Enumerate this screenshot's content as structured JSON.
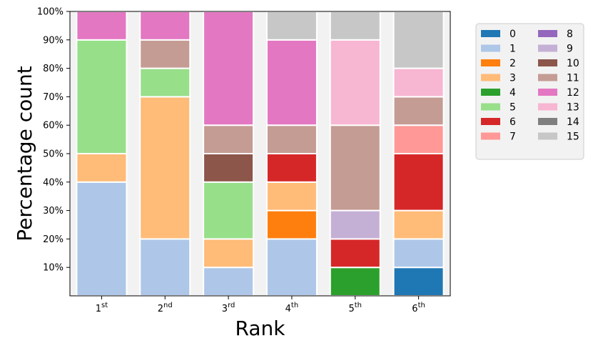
{
  "chart_data": {
    "type": "bar",
    "stacked": true,
    "xlabel": "Rank",
    "ylabel": "Percentage count",
    "ylim": [
      0,
      100
    ],
    "yticks": [
      10,
      20,
      30,
      40,
      50,
      60,
      70,
      80,
      90,
      100
    ],
    "ytick_suffix": "%",
    "grid": false,
    "background": "#f2f2f2",
    "categories": [
      {
        "base": "1",
        "sup": "st"
      },
      {
        "base": "2",
        "sup": "nd"
      },
      {
        "base": "3",
        "sup": "rd"
      },
      {
        "base": "4",
        "sup": "th"
      },
      {
        "base": "5",
        "sup": "th"
      },
      {
        "base": "6",
        "sup": "th"
      }
    ],
    "series": [
      {
        "name": "0",
        "color": "#1f77b4",
        "values": [
          0,
          0,
          0,
          0,
          0,
          10
        ]
      },
      {
        "name": "1",
        "color": "#aec7e8",
        "values": [
          40,
          20,
          10,
          20,
          0,
          10
        ]
      },
      {
        "name": "2",
        "color": "#ff7f0e",
        "values": [
          0,
          0,
          0,
          10,
          0,
          0
        ]
      },
      {
        "name": "3",
        "color": "#ffbb78",
        "values": [
          10,
          50,
          10,
          10,
          0,
          10
        ]
      },
      {
        "name": "4",
        "color": "#2ca02c",
        "values": [
          0,
          0,
          0,
          0,
          10,
          0
        ]
      },
      {
        "name": "5",
        "color": "#98df8a",
        "values": [
          40,
          10,
          20,
          0,
          0,
          0
        ]
      },
      {
        "name": "6",
        "color": "#d62728",
        "values": [
          0,
          0,
          0,
          10,
          10,
          20
        ]
      },
      {
        "name": "7",
        "color": "#ff9896",
        "values": [
          0,
          0,
          0,
          0,
          0,
          10
        ]
      },
      {
        "name": "8",
        "color": "#9467bd",
        "values": [
          0,
          0,
          0,
          0,
          0,
          0
        ]
      },
      {
        "name": "9",
        "color": "#c5b0d5",
        "values": [
          0,
          0,
          0,
          0,
          10,
          0
        ]
      },
      {
        "name": "10",
        "color": "#8c564b",
        "values": [
          0,
          0,
          10,
          0,
          0,
          0
        ]
      },
      {
        "name": "11",
        "color": "#c49c94",
        "values": [
          0,
          10,
          10,
          10,
          30,
          10
        ]
      },
      {
        "name": "12",
        "color": "#e377c2",
        "values": [
          10,
          10,
          40,
          30,
          0,
          0
        ]
      },
      {
        "name": "13",
        "color": "#f7b6d2",
        "values": [
          0,
          0,
          0,
          0,
          30,
          10
        ]
      },
      {
        "name": "14",
        "color": "#7f7f7f",
        "values": [
          0,
          0,
          0,
          0,
          0,
          0
        ]
      },
      {
        "name": "15",
        "color": "#c7c7c7",
        "values": [
          0,
          0,
          0,
          10,
          10,
          20
        ]
      }
    ],
    "legend": {
      "placement": "right, outside plot",
      "columns": 2
    }
  }
}
